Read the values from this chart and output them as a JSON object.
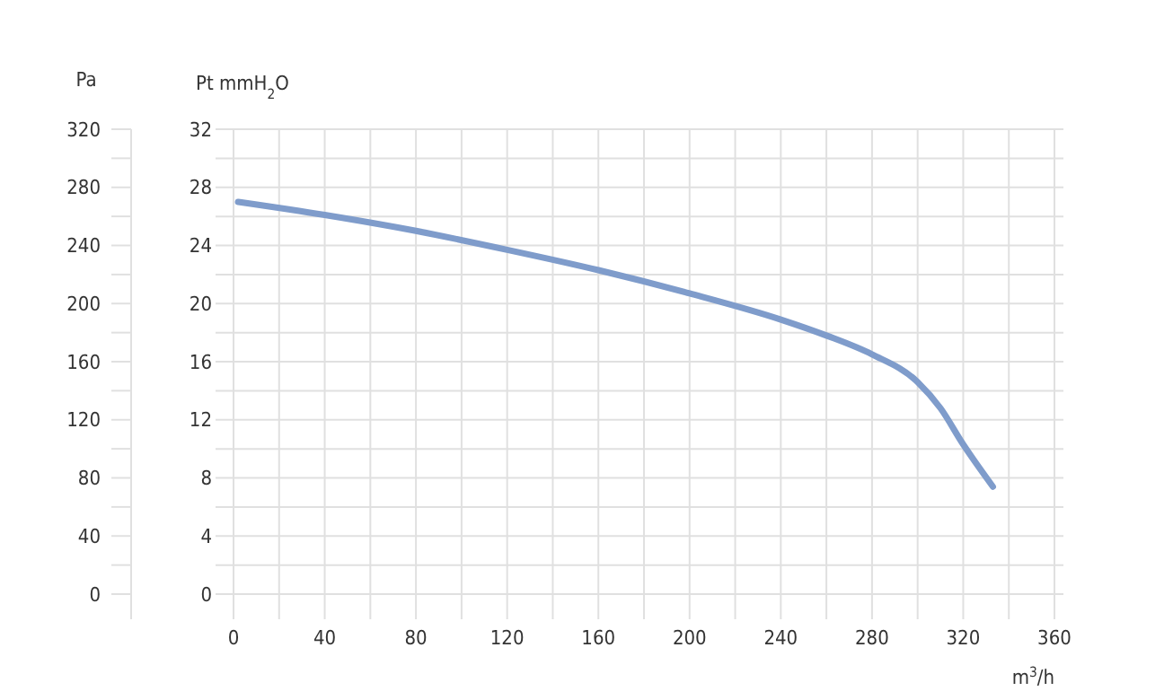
{
  "chart_data": {
    "type": "line",
    "xlabel": "m$^{3}$/h",
    "ylabel": "Pt mmH$_{2}$O",
    "y2label": "Pa",
    "xlim": [
      0,
      360
    ],
    "ylim": [
      0,
      32
    ],
    "y2lim": [
      0,
      320
    ],
    "xticks": [
      0,
      {
        "value": 20,
        "label": null
      },
      40,
      {
        "value": 60,
        "label": null
      },
      80,
      {
        "value": 100,
        "label": null
      },
      120,
      {
        "value": 140,
        "label": null
      },
      160,
      {
        "value": 180,
        "label": null
      },
      200,
      {
        "value": 220,
        "label": null
      },
      240,
      {
        "value": 260,
        "label": null
      },
      280,
      {
        "value": 300,
        "label": null
      },
      320,
      {
        "value": 340,
        "label": null
      },
      360
    ],
    "yticks": [
      0,
      {
        "value": 2,
        "label": null
      },
      4,
      {
        "value": 6,
        "label": null
      },
      8,
      {
        "value": 10,
        "label": null
      },
      12,
      {
        "value": 14,
        "label": null
      },
      16,
      {
        "value": 18,
        "label": null
      },
      20,
      {
        "value": 22,
        "label": null
      },
      24,
      {
        "value": 26,
        "label": null
      },
      28,
      {
        "value": 30,
        "label": null
      },
      32
    ],
    "y2ticks": [
      0,
      {
        "value": 20,
        "label": null
      },
      40,
      {
        "value": 60,
        "label": null
      },
      80,
      {
        "value": 100,
        "label": null
      },
      120,
      {
        "value": 140,
        "label": null
      },
      160,
      {
        "value": 180,
        "label": null
      },
      200,
      {
        "value": 220,
        "label": null
      },
      240,
      {
        "value": 260,
        "label": null
      },
      280,
      {
        "value": 300,
        "label": null
      },
      320
    ],
    "grid": true,
    "marker": "none",
    "line_style": "solid",
    "series": [
      {
        "color": "#7f9ccb",
        "axis": "y",
        "x": [
          2,
          40,
          80,
          120,
          160,
          200,
          240,
          260,
          280,
          300,
          310,
          320,
          333
        ],
        "values": [
          27,
          26.1,
          25,
          23.7,
          22.3,
          20.7,
          18.9,
          17.8,
          16.5,
          14.6,
          12.8,
          10.3,
          7.4
        ]
      }
    ]
  }
}
